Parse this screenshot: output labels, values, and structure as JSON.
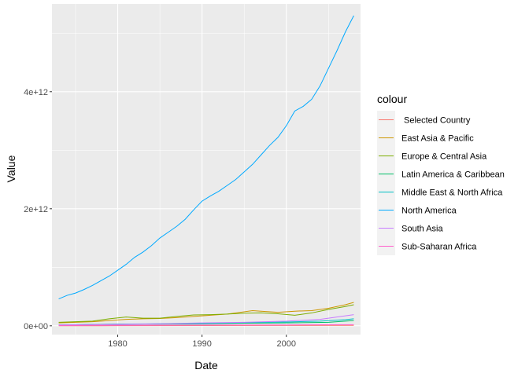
{
  "chart_data": {
    "type": "line",
    "xlabel": "Date",
    "ylabel": "Value",
    "xlim": [
      1972.2,
      2008.8
    ],
    "ylim": [
      -150000000000.0,
      5500000000000.0
    ],
    "x_ticks": [
      1980,
      1990,
      2000
    ],
    "x_tick_labels": [
      "1980",
      "1990",
      "2000"
    ],
    "y_ticks": [
      0,
      2000000000000.0,
      4000000000000.0
    ],
    "y_tick_labels": [
      "0e+00",
      "2e+12",
      "4e+12"
    ],
    "grid": true,
    "legend": {
      "title": "colour",
      "placement": "right"
    },
    "series": [
      {
        "name": " Selected Country",
        "color": "#F8766D",
        "x": [
          1973,
          1980,
          1990,
          2000,
          2008
        ],
        "y": [
          1000000000.0,
          2000000000.0,
          4000000000.0,
          6000000000.0,
          8000000000.0
        ]
      },
      {
        "name": "East Asia & Pacific",
        "color": "#CD9600",
        "x": [
          1973,
          1975,
          1977,
          1979,
          1981,
          1983,
          1985,
          1987,
          1989,
          1991,
          1993,
          1995,
          1996,
          1997,
          1999,
          2001,
          2003,
          2005,
          2007,
          2008
        ],
        "y": [
          50000000000.0,
          60000000000.0,
          70000000000.0,
          90000000000.0,
          110000000000.0,
          120000000000.0,
          125000000000.0,
          140000000000.0,
          160000000000.0,
          180000000000.0,
          200000000000.0,
          240000000000.0,
          260000000000.0,
          250000000000.0,
          230000000000.0,
          250000000000.0,
          260000000000.0,
          300000000000.0,
          360000000000.0,
          400000000000.0
        ]
      },
      {
        "name": "Europe & Central Asia",
        "color": "#7CAE00",
        "x": [
          1973,
          1975,
          1977,
          1979,
          1981,
          1983,
          1985,
          1987,
          1989,
          1991,
          1993,
          1995,
          1997,
          1999,
          2001,
          2003,
          2005,
          2007,
          2008
        ],
        "y": [
          60000000000.0,
          70000000000.0,
          80000000000.0,
          120000000000.0,
          150000000000.0,
          130000000000.0,
          130000000000.0,
          160000000000.0,
          185000000000.0,
          190000000000.0,
          200000000000.0,
          215000000000.0,
          220000000000.0,
          205000000000.0,
          180000000000.0,
          220000000000.0,
          280000000000.0,
          330000000000.0,
          360000000000.0
        ]
      },
      {
        "name": "Latin America & Caribbean",
        "color": "#00BE67",
        "x": [
          1973,
          1980,
          1985,
          1990,
          1995,
          2000,
          2005,
          2008
        ],
        "y": [
          15000000000.0,
          30000000000.0,
          30000000000.0,
          35000000000.0,
          45000000000.0,
          50000000000.0,
          60000000000.0,
          90000000000.0
        ]
      },
      {
        "name": "Middle East & North Africa",
        "color": "#00BFC4",
        "x": [
          1973,
          1980,
          1985,
          1990,
          1995,
          2000,
          2004,
          2007,
          2008
        ],
        "y": [
          10000000000.0,
          30000000000.0,
          35000000000.0,
          40000000000.0,
          55000000000.0,
          65000000000.0,
          80000000000.0,
          105000000000.0,
          120000000000.0
        ]
      },
      {
        "name": "North America",
        "color": "#00A9FF",
        "x": [
          1973,
          1974,
          1975,
          1976,
          1977,
          1978,
          1979,
          1980,
          1981,
          1982,
          1983,
          1984,
          1985,
          1986,
          1987,
          1988,
          1989,
          1990,
          1991,
          1992,
          1993,
          1994,
          1995,
          1996,
          1997,
          1998,
          1999,
          2000,
          2001,
          2002,
          2003,
          2004,
          2005,
          2006,
          2007,
          2008
        ],
        "y": [
          460000000000.0,
          520000000000.0,
          560000000000.0,
          620000000000.0,
          690000000000.0,
          770000000000.0,
          850000000000.0,
          950000000000.0,
          1050000000000.0,
          1170000000000.0,
          1260000000000.0,
          1370000000000.0,
          1500000000000.0,
          1600000000000.0,
          1700000000000.0,
          1820000000000.0,
          1980000000000.0,
          2130000000000.0,
          2220000000000.0,
          2300000000000.0,
          2400000000000.0,
          2500000000000.0,
          2630000000000.0,
          2760000000000.0,
          2920000000000.0,
          3080000000000.0,
          3220000000000.0,
          3420000000000.0,
          3670000000000.0,
          3750000000000.0,
          3870000000000.0,
          4100000000000.0,
          4400000000000.0,
          4700000000000.0,
          5020000000000.0,
          5300000000000.0
        ]
      },
      {
        "name": "South Asia",
        "color": "#C77CFF",
        "x": [
          1973,
          1980,
          1985,
          1990,
          1995,
          2000,
          2004,
          2008
        ],
        "y": [
          15000000000.0,
          25000000000.0,
          35000000000.0,
          50000000000.0,
          60000000000.0,
          80000000000.0,
          110000000000.0,
          190000000000.0
        ]
      },
      {
        "name": "Sub-Saharan Africa",
        "color": "#FF61CC",
        "x": [
          1973,
          1980,
          1990,
          2000,
          2008
        ],
        "y": [
          5000000000.0,
          10000000000.0,
          12000000000.0,
          15000000000.0,
          20000000000.0
        ]
      }
    ]
  }
}
